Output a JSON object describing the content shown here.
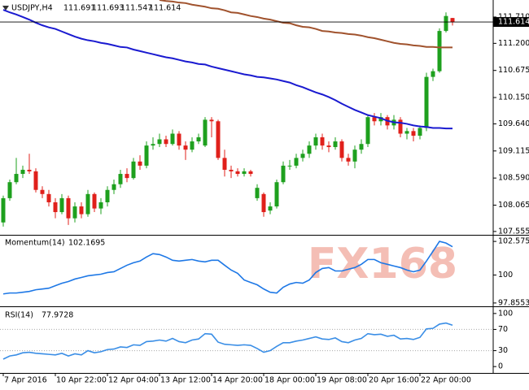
{
  "chart_data": [
    {
      "type": "candlestick",
      "symbol": "USDJPY,H4",
      "watermark": "FX168",
      "categories": [
        "7 Apr 2016",
        null,
        null,
        null,
        null,
        null,
        null,
        null,
        "10 Apr 22:00",
        null,
        null,
        null,
        null,
        null,
        null,
        null,
        "12 Apr 04:00",
        null,
        null,
        null,
        null,
        null,
        null,
        null,
        "13 Apr 12:00",
        null,
        null,
        null,
        null,
        null,
        null,
        null,
        "14 Apr 20:00",
        null,
        null,
        null,
        null,
        null,
        null,
        null,
        "18 Apr 00:00",
        null,
        null,
        null,
        null,
        null,
        null,
        null,
        "19 Apr 08:00",
        null,
        null,
        null,
        null,
        null,
        null,
        null,
        "20 Apr 16:00",
        null,
        null,
        null,
        null,
        null,
        null,
        null,
        "22 Apr 00:00",
        null,
        null,
        null,
        null,
        null
      ],
      "open": [
        107.73,
        108.2,
        108.51,
        108.67,
        108.75,
        108.72,
        108.36,
        108.28,
        108.12,
        107.93,
        108.2,
        107.81,
        108.04,
        107.89,
        108.28,
        108.0,
        108.12,
        108.36,
        108.47,
        108.67,
        108.59,
        108.91,
        108.83,
        109.22,
        109.25,
        109.34,
        109.25,
        109.45,
        109.22,
        109.14,
        109.3,
        109.22,
        109.72,
        109.69,
        108.98,
        108.75,
        108.72,
        108.67,
        108.72,
        108.2,
        108.28,
        107.96,
        108.04,
        108.51,
        108.83,
        108.83,
        108.98,
        109.06,
        109.22,
        109.38,
        109.22,
        109.19,
        109.3,
        108.98,
        108.91,
        109.14,
        109.25,
        109.77,
        109.69,
        109.77,
        109.61,
        109.72,
        109.45,
        109.5,
        109.41,
        109.56,
        110.55,
        110.66,
        111.44,
        111.691
      ],
      "high": [
        108.25,
        108.56,
        108.98,
        108.83,
        109.06,
        108.78,
        108.43,
        108.36,
        108.2,
        108.28,
        108.25,
        108.12,
        108.12,
        108.36,
        108.31,
        108.2,
        108.43,
        108.56,
        108.75,
        108.78,
        108.98,
        109.03,
        109.3,
        109.38,
        109.45,
        109.41,
        109.53,
        109.5,
        109.3,
        109.38,
        109.45,
        109.77,
        109.77,
        109.72,
        109.14,
        108.83,
        108.78,
        108.78,
        108.75,
        108.47,
        108.31,
        108.12,
        108.56,
        108.91,
        108.94,
        109.06,
        109.14,
        109.3,
        109.45,
        109.45,
        109.3,
        109.38,
        109.34,
        109.06,
        109.22,
        109.34,
        109.81,
        109.85,
        109.85,
        109.81,
        109.81,
        109.77,
        109.56,
        109.56,
        109.61,
        110.63,
        110.71,
        111.49,
        111.8,
        111.693
      ],
      "low": [
        107.65,
        108.15,
        108.47,
        108.59,
        108.67,
        108.31,
        108.2,
        108.04,
        107.81,
        107.89,
        107.68,
        107.73,
        107.81,
        107.84,
        107.93,
        107.89,
        108.04,
        108.28,
        108.4,
        108.51,
        108.56,
        108.75,
        108.78,
        109.14,
        109.19,
        109.19,
        109.22,
        109.14,
        108.94,
        109.09,
        109.25,
        109.19,
        109.38,
        108.94,
        108.62,
        108.59,
        108.62,
        108.62,
        108.62,
        108.15,
        107.84,
        107.89,
        108.0,
        108.47,
        108.75,
        108.78,
        108.91,
        108.98,
        109.14,
        109.14,
        109.09,
        109.14,
        108.91,
        108.83,
        108.78,
        109.06,
        109.19,
        109.61,
        109.61,
        109.53,
        109.53,
        109.38,
        109.34,
        109.3,
        109.34,
        109.5,
        110.47,
        110.63,
        111.41,
        111.547
      ],
      "close": [
        108.2,
        108.51,
        108.67,
        108.75,
        108.72,
        108.36,
        108.28,
        108.12,
        107.93,
        108.2,
        107.81,
        108.04,
        107.89,
        108.28,
        108.0,
        108.12,
        108.36,
        108.47,
        108.67,
        108.59,
        108.91,
        108.83,
        109.22,
        109.25,
        109.34,
        109.25,
        109.45,
        109.22,
        109.14,
        109.3,
        109.38,
        109.72,
        109.69,
        108.98,
        108.75,
        108.72,
        108.67,
        108.72,
        108.67,
        108.4,
        107.93,
        108.04,
        108.51,
        108.83,
        108.83,
        108.98,
        109.06,
        109.22,
        109.38,
        109.22,
        109.19,
        109.3,
        108.98,
        108.91,
        109.14,
        109.25,
        109.77,
        109.69,
        109.77,
        109.61,
        109.72,
        109.45,
        109.5,
        109.41,
        109.56,
        110.55,
        110.66,
        111.44,
        111.73,
        111.614
      ],
      "up_color": "#1ea01e",
      "down_color": "#e0201b",
      "overlays": [
        {
          "color": "#1a1ad0",
          "values": [
            111.85,
            111.8,
            111.76,
            111.71,
            111.66,
            111.6,
            111.55,
            111.51,
            111.48,
            111.43,
            111.38,
            111.33,
            111.29,
            111.26,
            111.24,
            111.21,
            111.19,
            111.16,
            111.13,
            111.12,
            111.08,
            111.05,
            111.02,
            110.99,
            110.96,
            110.93,
            110.91,
            110.88,
            110.85,
            110.83,
            110.8,
            110.79,
            110.75,
            110.72,
            110.69,
            110.66,
            110.63,
            110.6,
            110.58,
            110.55,
            110.54,
            110.52,
            110.5,
            110.47,
            110.44,
            110.39,
            110.35,
            110.3,
            110.25,
            110.21,
            110.16,
            110.1,
            110.03,
            109.97,
            109.91,
            109.86,
            109.81,
            109.78,
            109.75,
            109.7,
            109.67,
            109.66,
            109.64,
            109.61,
            109.59,
            109.58,
            109.56,
            109.56,
            109.55,
            109.55
          ]
        },
        {
          "color": "#a0522d",
          "values": [
            null,
            null,
            null,
            null,
            null,
            null,
            null,
            null,
            null,
            null,
            null,
            null,
            null,
            null,
            null,
            null,
            null,
            null,
            null,
            null,
            null,
            null,
            null,
            null,
            112.04,
            112.02,
            112.01,
            111.99,
            111.98,
            111.95,
            111.93,
            111.91,
            111.88,
            111.87,
            111.84,
            111.8,
            111.79,
            111.76,
            111.73,
            111.71,
            111.68,
            111.66,
            111.63,
            111.6,
            111.59,
            111.55,
            111.52,
            111.51,
            111.48,
            111.44,
            111.43,
            111.41,
            111.4,
            111.38,
            111.37,
            111.35,
            111.32,
            111.3,
            111.27,
            111.24,
            111.21,
            111.19,
            111.18,
            111.16,
            111.15,
            111.13,
            111.13,
            111.12,
            111.12,
            111.12
          ]
        }
      ],
      "ylim": [
        107.49,
        112.04
      ],
      "yticks": [
        {
          "value": 111.71,
          "label": "111.710"
        },
        {
          "value": 111.2,
          "label": "111.200"
        },
        110.675,
        {
          "value": 110.15,
          "label": "110.150"
        },
        {
          "value": 109.64,
          "label": "109.640"
        },
        109.115,
        {
          "value": 108.59,
          "label": "108.590"
        },
        108.065,
        107.555
      ],
      "current_price_line": true
    },
    {
      "type": "line",
      "title": "Momentum(14)",
      "color": "#1e78e6",
      "values": [
        98.55,
        98.62,
        98.62,
        98.68,
        98.74,
        98.87,
        98.93,
        98.99,
        99.18,
        99.37,
        99.5,
        99.69,
        99.81,
        99.94,
        100.0,
        100.06,
        100.19,
        100.25,
        100.5,
        100.75,
        100.94,
        101.07,
        101.38,
        101.64,
        101.57,
        101.38,
        101.13,
        101.07,
        101.13,
        101.19,
        101.07,
        101.01,
        101.13,
        101.13,
        100.75,
        100.38,
        100.13,
        99.62,
        99.43,
        99.25,
        98.93,
        98.68,
        98.62,
        99.06,
        99.31,
        99.43,
        99.37,
        99.62,
        100.19,
        100.5,
        100.57,
        100.31,
        100.31,
        100.44,
        100.57,
        100.82,
        101.19,
        101.19,
        100.94,
        100.82,
        100.69,
        100.57,
        100.38,
        100.25,
        100.38,
        101.07,
        101.82,
        102.58,
        102.45,
        102.1695
      ],
      "ylim": [
        97.6,
        103.02
      ],
      "yticks": [
        102.5754,
        100,
        97.8553
      ]
    },
    {
      "type": "line",
      "title": "RSI(14)",
      "color": "#3a8ee6",
      "values": [
        14,
        20,
        22,
        26,
        27,
        25,
        24,
        23,
        22,
        25,
        20,
        24,
        22,
        30,
        26,
        28,
        32,
        33,
        37,
        36,
        41,
        40,
        47,
        48,
        50,
        48,
        53,
        47,
        45,
        50,
        52,
        62,
        61,
        46,
        42,
        41,
        40,
        41,
        40,
        34,
        27,
        30,
        38,
        45,
        45,
        48,
        50,
        53,
        56,
        52,
        51,
        54,
        47,
        45,
        50,
        53,
        62,
        60,
        61,
        57,
        59,
        52,
        53,
        51,
        55,
        71,
        72,
        80,
        82,
        77.9728
      ],
      "ylim": [
        -12,
        112
      ],
      "yticks": [
        100,
        70,
        30,
        0
      ],
      "levels": [
        70,
        30
      ]
    }
  ]
}
